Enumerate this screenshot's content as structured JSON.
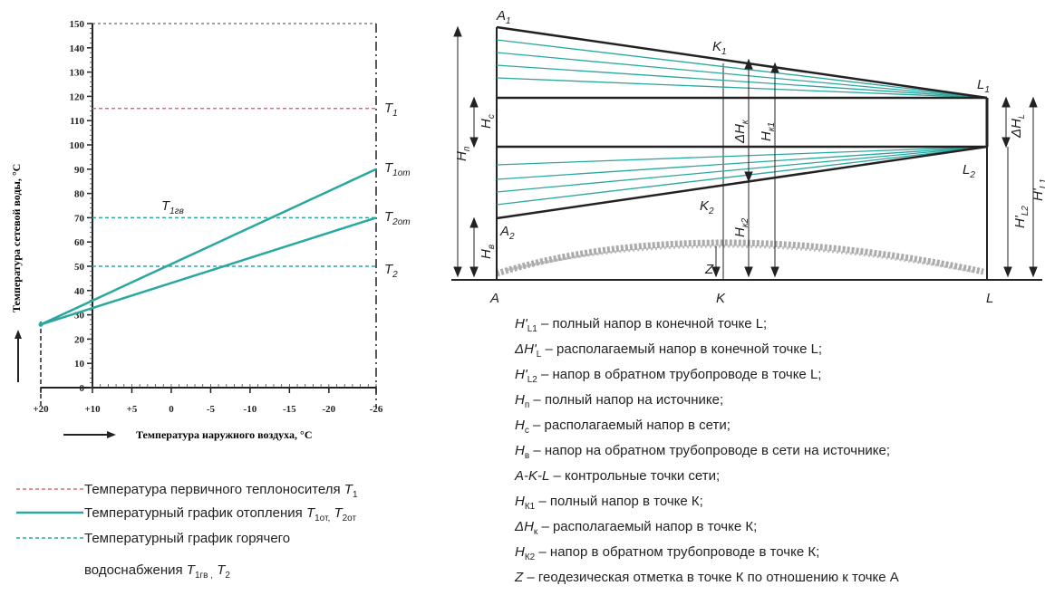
{
  "chart_data": [
    {
      "type": "line",
      "ylabel": "Температура сетевой воды, °С",
      "xlabel": "Температура наружного воздуха, °С",
      "y_ticks": [
        "150",
        "140",
        "130",
        "120",
        "110",
        "100",
        "90",
        "80",
        "70",
        "60",
        "50",
        "40",
        "30",
        "20",
        "10",
        "0"
      ],
      "x_ticks": [
        "+20",
        "+10",
        "+5",
        "0",
        "-5",
        "-10",
        "-15",
        "-20",
        "-26"
      ],
      "x_values": [
        20,
        10,
        5,
        0,
        -5,
        -10,
        -15,
        -20,
        -26
      ],
      "ylim": [
        0,
        150
      ],
      "series": [
        {
          "name": "T1",
          "style": "dashed",
          "color": "#e06a7a",
          "points": [
            [
              10,
              115
            ],
            [
              -26,
              115
            ]
          ]
        },
        {
          "name": "T1от",
          "style": "solid",
          "color": "#2aa8a0",
          "points": [
            [
              20,
              26
            ],
            [
              -26,
              90
            ]
          ]
        },
        {
          "name": "T2от",
          "style": "solid",
          "color": "#2aa8a0",
          "points": [
            [
              20,
              26
            ],
            [
              -26,
              70
            ]
          ]
        },
        {
          "name": "T1гв",
          "style": "dashed",
          "color": "#2aa8a0",
          "points": [
            [
              10,
              70
            ],
            [
              -26,
              70
            ]
          ]
        },
        {
          "name": "T2",
          "style": "dashed",
          "color": "#2aa8a0",
          "points": [
            [
              10,
              50
            ],
            [
              -26,
              50
            ]
          ]
        }
      ],
      "labels": {
        "T1": "T",
        "T1_sub": "1",
        "T1ot": "T",
        "T1ot_sub": "1от",
        "T2ot": "T",
        "T2ot_sub": "2от",
        "T1gv": "T",
        "T1gv_sub": "1гв",
        "T2": "T",
        "T2_sub": "2"
      }
    }
  ],
  "legend": [
    {
      "text": "Температура первичного теплоносителя ",
      "sym": "T",
      "sub": "1",
      "style": "dashed",
      "color": "#e06a7a"
    },
    {
      "text": "Температурный график отопления ",
      "sym": "T",
      "sub": "1от,",
      "sym2": "T",
      "sub2": "2от",
      "style": "solid",
      "color": "#2aa8a0"
    },
    {
      "text": "Температурный график горячего",
      "style": "dashed",
      "color": "#2aa8a0"
    },
    {
      "text": "водоснабжения ",
      "sym": "T",
      "sub": "1гв ,",
      "sym2": "T",
      "sub2": "2"
    }
  ],
  "diagram": {
    "points": {
      "A1": "A",
      "A1_sub": "1",
      "A2": "A",
      "A2_sub": "2",
      "K1": "K",
      "K1_sub": "1",
      "K2": "K",
      "K2_sub": "2",
      "L1": "L",
      "L1_sub": "1",
      "L2": "L",
      "L2_sub": "2",
      "A": "A",
      "K": "K",
      "L": "L"
    },
    "heights": {
      "Hp": "H",
      "Hp_sub": "п",
      "Hc": "H",
      "Hc_sub": "с",
      "Hb": "H",
      "Hb_sub": "в",
      "Z": "Z",
      "dHk": "ΔH",
      "dHk_sub": "к",
      "Hk1": "H",
      "Hk1_sub": "к1",
      "Hk2": "H",
      "Hk2_sub": "к2",
      "dHL": "ΔH",
      "dHL_sub": "L",
      "HL2": "H'",
      "HL2_sub": "L2",
      "HL1": "H'",
      "HL1_sub": "L1"
    },
    "definitions": [
      {
        "sym": "H'",
        "sub": "L1",
        "text": " – полный напор в конечной точке L;"
      },
      {
        "sym": "ΔH'",
        "sub": "L",
        "text": " – располагаемый напор в конечной точке L;"
      },
      {
        "sym": "H'",
        "sub": "L2",
        "text": " – напор в обратном трубопроводе в точке L;"
      },
      {
        "sym": "H",
        "sub": "п",
        "text": " – полный напор на источнике;"
      },
      {
        "sym": "H",
        "sub": "с",
        "text": " – располагаемый напор в сети;"
      },
      {
        "sym": "H",
        "sub": "в",
        "text": " – напор на обратном трубопроводе в сети на источнике;"
      },
      {
        "sym": "A-K-L",
        "sub": "",
        "text": " – контрольные точки сети;"
      },
      {
        "sym": "H",
        "sub": "К1",
        "text": " – полный напор в точке К;"
      },
      {
        "sym": "ΔH",
        "sub": "к",
        "text": " – располагаемый напор в точке К;"
      },
      {
        "sym": "H",
        "sub": "К2",
        "text": " – напор в обратном трубопроводе в точке К;"
      },
      {
        "sym": "Z",
        "sub": "",
        "text": " – геодезическая отметка в точке К по отношению к точке А"
      }
    ]
  }
}
